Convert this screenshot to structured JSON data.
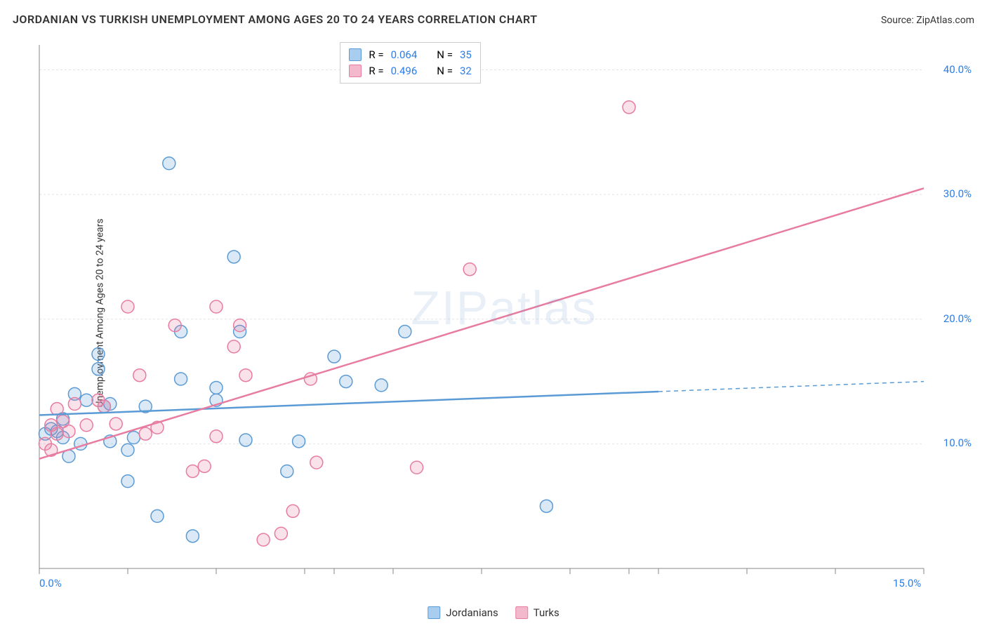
{
  "title": "JORDANIAN VS TURKISH UNEMPLOYMENT AMONG AGES 20 TO 24 YEARS CORRELATION CHART",
  "source_label": "Source: ",
  "source_name": "ZipAtlas.com",
  "ylabel": "Unemployment Among Ages 20 to 24 years",
  "watermark": "ZIPatlas",
  "chart": {
    "type": "scatter",
    "xlim": [
      0,
      15
    ],
    "ylim": [
      0,
      42
    ],
    "x_ticks": [
      0,
      5,
      10,
      15
    ],
    "x_tick_minor": [
      1.5,
      3.0,
      4.5,
      6.0,
      7.5,
      9.0,
      10.5,
      12.0,
      13.5
    ],
    "y_ticks": [
      10,
      20,
      30,
      40
    ],
    "x_suffix": "%",
    "y_suffix": "%",
    "background_color": "#ffffff",
    "grid_color": "#e3e3e3",
    "axis_color": "#888888",
    "tick_label_color": "#2b7de9",
    "marker_radius": 9,
    "marker_stroke_width": 1.5,
    "marker_fill_opacity": 0.22,
    "series": [
      {
        "name": "Jordanians",
        "color": "#5b9bd5",
        "fill": "#a8cdee",
        "R": "0.064",
        "N": "35",
        "trend": {
          "y_at_x0": 12.3,
          "y_at_x15": 15.0,
          "solid_until_x": 10.5
        },
        "points": [
          [
            0.1,
            10.8
          ],
          [
            0.2,
            11.2
          ],
          [
            0.3,
            11.0
          ],
          [
            0.4,
            10.5
          ],
          [
            0.4,
            12.0
          ],
          [
            0.5,
            9.0
          ],
          [
            0.6,
            14.0
          ],
          [
            0.7,
            10.0
          ],
          [
            0.8,
            13.5
          ],
          [
            1.0,
            16.0
          ],
          [
            1.0,
            17.2
          ],
          [
            1.1,
            13.0
          ],
          [
            1.2,
            10.2
          ],
          [
            1.2,
            13.2
          ],
          [
            1.5,
            7.0
          ],
          [
            1.5,
            9.5
          ],
          [
            1.6,
            10.5
          ],
          [
            1.8,
            13.0
          ],
          [
            2.0,
            4.2
          ],
          [
            2.2,
            32.5
          ],
          [
            2.4,
            19.0
          ],
          [
            2.4,
            15.2
          ],
          [
            2.6,
            2.6
          ],
          [
            3.0,
            13.5
          ],
          [
            3.0,
            14.5
          ],
          [
            3.3,
            25.0
          ],
          [
            3.4,
            19.0
          ],
          [
            3.5,
            10.3
          ],
          [
            4.2,
            7.8
          ],
          [
            4.4,
            10.2
          ],
          [
            5.0,
            17.0
          ],
          [
            5.2,
            15.0
          ],
          [
            5.8,
            14.7
          ],
          [
            6.2,
            19.0
          ],
          [
            8.6,
            5.0
          ]
        ]
      },
      {
        "name": "Turks",
        "color": "#e87ca0",
        "fill": "#f4b8cc",
        "R": "0.496",
        "N": "32",
        "trend": {
          "y_at_x0": 8.8,
          "y_at_x15": 30.5,
          "solid_until_x": 15
        },
        "points": [
          [
            0.1,
            10.0
          ],
          [
            0.2,
            9.5
          ],
          [
            0.2,
            11.5
          ],
          [
            0.3,
            10.8
          ],
          [
            0.3,
            12.8
          ],
          [
            0.4,
            11.8
          ],
          [
            0.5,
            11.0
          ],
          [
            0.6,
            13.2
          ],
          [
            0.8,
            11.5
          ],
          [
            1.0,
            13.5
          ],
          [
            1.1,
            13.0
          ],
          [
            1.3,
            11.6
          ],
          [
            1.5,
            21.0
          ],
          [
            1.7,
            15.5
          ],
          [
            1.8,
            10.8
          ],
          [
            2.0,
            11.3
          ],
          [
            2.3,
            19.5
          ],
          [
            2.6,
            7.8
          ],
          [
            2.8,
            8.2
          ],
          [
            3.0,
            10.6
          ],
          [
            3.0,
            21.0
          ],
          [
            3.3,
            17.8
          ],
          [
            3.4,
            19.5
          ],
          [
            3.5,
            15.5
          ],
          [
            3.8,
            2.3
          ],
          [
            4.1,
            2.8
          ],
          [
            4.3,
            4.6
          ],
          [
            4.6,
            15.2
          ],
          [
            4.7,
            8.5
          ],
          [
            6.4,
            8.1
          ],
          [
            7.3,
            24.0
          ],
          [
            10.0,
            37.0
          ]
        ]
      }
    ]
  },
  "stats_panel": {
    "R_label": "R =",
    "N_label": "N ="
  },
  "legend": {
    "items": [
      "Jordanians",
      "Turks"
    ]
  }
}
